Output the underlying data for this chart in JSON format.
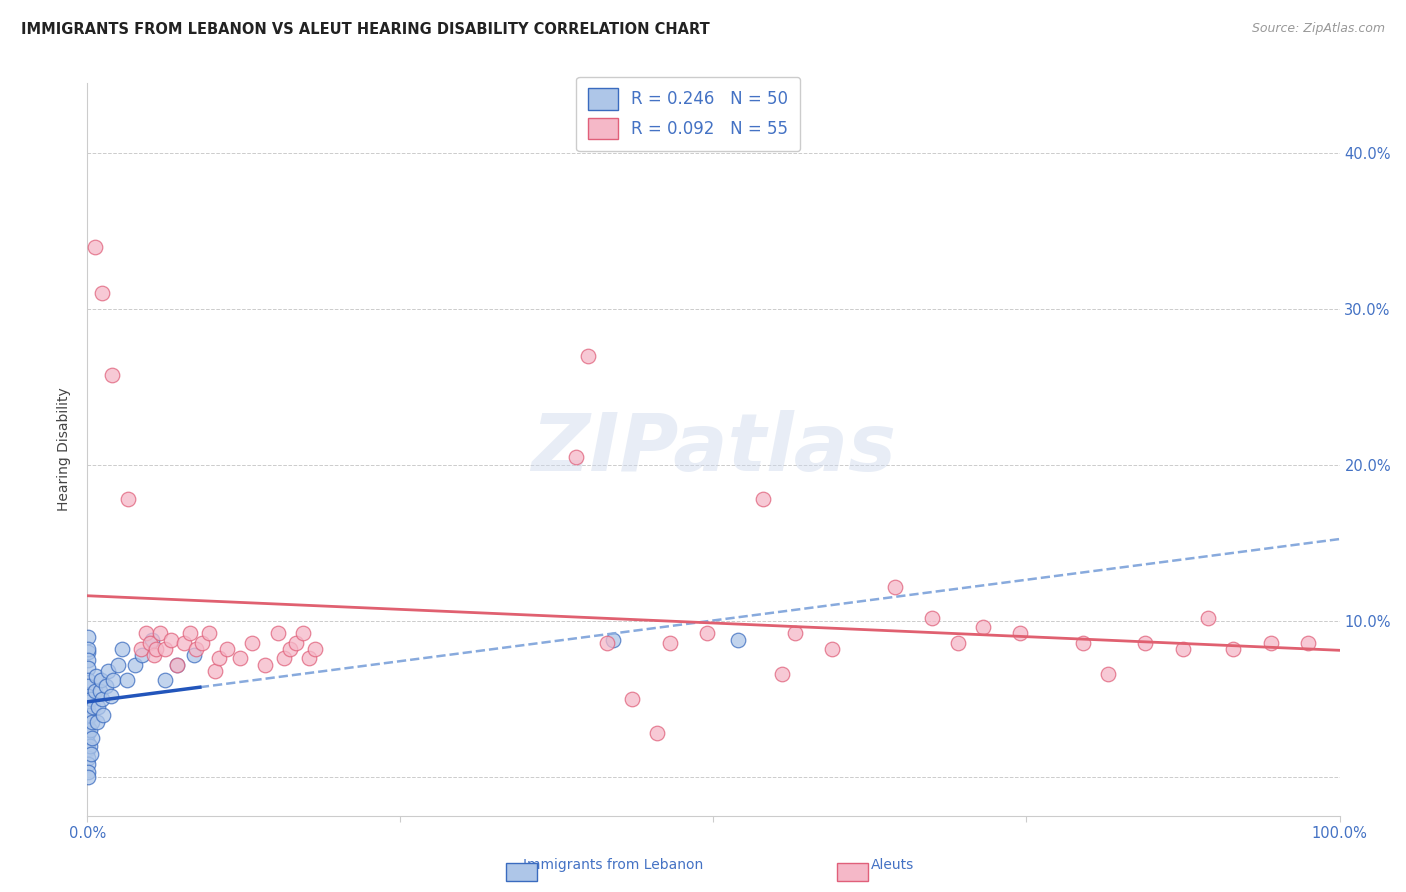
{
  "title": "IMMIGRANTS FROM LEBANON VS ALEUT HEARING DISABILITY CORRELATION CHART",
  "source": "Source: ZipAtlas.com",
  "ylabel": "Hearing Disability",
  "xlim": [
    0.0,
    1.0
  ],
  "ylim": [
    -0.025,
    0.445
  ],
  "yticks": [
    0.0,
    0.1,
    0.2,
    0.3,
    0.4
  ],
  "ytick_labels": [
    "",
    "10.0%",
    "20.0%",
    "30.0%",
    "40.0%"
  ],
  "xticks": [
    0.0,
    0.25,
    0.5,
    0.75,
    1.0
  ],
  "xtick_labels": [
    "0.0%",
    "",
    "",
    "",
    "100.0%"
  ],
  "legend_r1": "R = 0.246",
  "legend_n1": "N = 50",
  "legend_r2": "R = 0.092",
  "legend_n2": "N = 55",
  "color_blue": "#aec6e8",
  "color_pink": "#f5b8c8",
  "edge_blue": "#3a6bbf",
  "edge_pink": "#e0607a",
  "trendline_blue_solid": "#2255bb",
  "trendline_pink_solid": "#e06070",
  "trendline_blue_dash": "#88aadd",
  "background_color": "#ffffff",
  "blue_scatter": [
    [
      0.001,
      0.09
    ],
    [
      0.001,
      0.08
    ],
    [
      0.001,
      0.082
    ],
    [
      0.001,
      0.075
    ],
    [
      0.001,
      0.07
    ],
    [
      0.001,
      0.062
    ],
    [
      0.001,
      0.058
    ],
    [
      0.001,
      0.052
    ],
    [
      0.001,
      0.048
    ],
    [
      0.001,
      0.043
    ],
    [
      0.001,
      0.038
    ],
    [
      0.001,
      0.032
    ],
    [
      0.001,
      0.028
    ],
    [
      0.001,
      0.022
    ],
    [
      0.001,
      0.018
    ],
    [
      0.001,
      0.012
    ],
    [
      0.001,
      0.008
    ],
    [
      0.001,
      0.003
    ],
    [
      0.001,
      0.0
    ],
    [
      0.002,
      0.02
    ],
    [
      0.002,
      0.03
    ],
    [
      0.002,
      0.04
    ],
    [
      0.003,
      0.05
    ],
    [
      0.003,
      0.015
    ],
    [
      0.004,
      0.025
    ],
    [
      0.004,
      0.035
    ],
    [
      0.005,
      0.045
    ],
    [
      0.006,
      0.055
    ],
    [
      0.007,
      0.065
    ],
    [
      0.008,
      0.035
    ],
    [
      0.009,
      0.045
    ],
    [
      0.01,
      0.055
    ],
    [
      0.011,
      0.062
    ],
    [
      0.012,
      0.05
    ],
    [
      0.013,
      0.04
    ],
    [
      0.015,
      0.058
    ],
    [
      0.017,
      0.068
    ],
    [
      0.019,
      0.052
    ],
    [
      0.021,
      0.062
    ],
    [
      0.025,
      0.072
    ],
    [
      0.028,
      0.082
    ],
    [
      0.032,
      0.062
    ],
    [
      0.038,
      0.072
    ],
    [
      0.044,
      0.078
    ],
    [
      0.052,
      0.088
    ],
    [
      0.062,
      0.062
    ],
    [
      0.072,
      0.072
    ],
    [
      0.085,
      0.078
    ],
    [
      0.42,
      0.088
    ],
    [
      0.52,
      0.088
    ]
  ],
  "pink_scatter": [
    [
      0.006,
      0.34
    ],
    [
      0.012,
      0.31
    ],
    [
      0.02,
      0.258
    ],
    [
      0.033,
      0.178
    ],
    [
      0.043,
      0.082
    ],
    [
      0.047,
      0.092
    ],
    [
      0.05,
      0.086
    ],
    [
      0.053,
      0.078
    ],
    [
      0.055,
      0.082
    ],
    [
      0.058,
      0.092
    ],
    [
      0.062,
      0.082
    ],
    [
      0.067,
      0.088
    ],
    [
      0.072,
      0.072
    ],
    [
      0.077,
      0.086
    ],
    [
      0.082,
      0.092
    ],
    [
      0.087,
      0.082
    ],
    [
      0.092,
      0.086
    ],
    [
      0.097,
      0.092
    ],
    [
      0.102,
      0.068
    ],
    [
      0.105,
      0.076
    ],
    [
      0.112,
      0.082
    ],
    [
      0.122,
      0.076
    ],
    [
      0.132,
      0.086
    ],
    [
      0.142,
      0.072
    ],
    [
      0.152,
      0.092
    ],
    [
      0.157,
      0.076
    ],
    [
      0.162,
      0.082
    ],
    [
      0.167,
      0.086
    ],
    [
      0.172,
      0.092
    ],
    [
      0.177,
      0.076
    ],
    [
      0.182,
      0.082
    ],
    [
      0.39,
      0.205
    ],
    [
      0.4,
      0.27
    ],
    [
      0.415,
      0.086
    ],
    [
      0.435,
      0.05
    ],
    [
      0.455,
      0.028
    ],
    [
      0.465,
      0.086
    ],
    [
      0.495,
      0.092
    ],
    [
      0.54,
      0.178
    ],
    [
      0.555,
      0.066
    ],
    [
      0.565,
      0.092
    ],
    [
      0.595,
      0.082
    ],
    [
      0.645,
      0.122
    ],
    [
      0.675,
      0.102
    ],
    [
      0.695,
      0.086
    ],
    [
      0.715,
      0.096
    ],
    [
      0.745,
      0.092
    ],
    [
      0.795,
      0.086
    ],
    [
      0.815,
      0.066
    ],
    [
      0.845,
      0.086
    ],
    [
      0.875,
      0.082
    ],
    [
      0.895,
      0.102
    ],
    [
      0.915,
      0.082
    ],
    [
      0.945,
      0.086
    ],
    [
      0.975,
      0.086
    ]
  ],
  "blue_trend_x": [
    0.0,
    0.09
  ],
  "blue_trend_solid_end": 0.09,
  "pink_trend_x": [
    0.0,
    1.0
  ]
}
